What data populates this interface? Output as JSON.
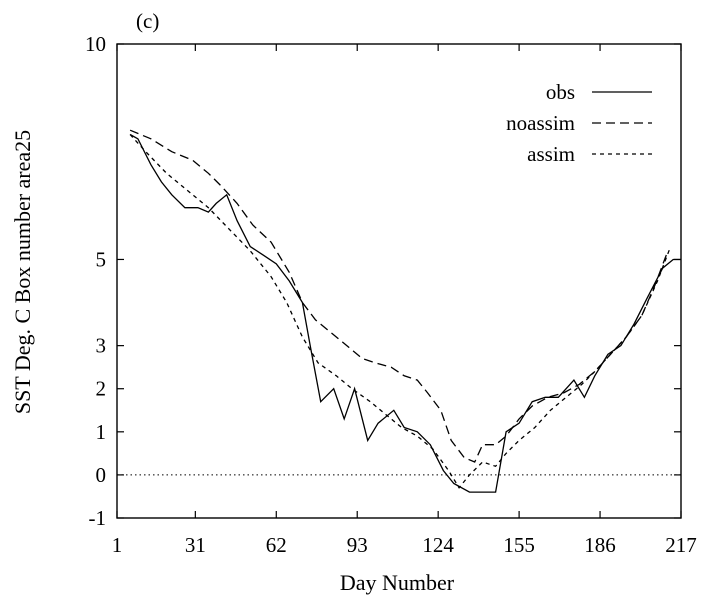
{
  "chart_data": {
    "type": "line",
    "panel_label": "(c)",
    "xlabel": "Day Number",
    "ylabel": "SST Deg. C Box number area25",
    "xlim": [
      1,
      217
    ],
    "ylim": [
      -1,
      10
    ],
    "xticks": [
      1,
      31,
      62,
      93,
      124,
      155,
      186,
      217
    ],
    "yticks": [
      -1,
      0,
      1,
      2,
      3,
      5,
      10
    ],
    "reference_line": {
      "y": 0,
      "style": "dotted"
    },
    "legend_position": "top-right",
    "grid": false,
    "series": [
      {
        "name": "obs",
        "style": "solid",
        "x": [
          6,
          9,
          14,
          18,
          22,
          27,
          32,
          36,
          39,
          43,
          47,
          52,
          57,
          62,
          67,
          72,
          75,
          79,
          84,
          88,
          92,
          97,
          101,
          107,
          111,
          116,
          121,
          126,
          130,
          136,
          141,
          146,
          150,
          155,
          160,
          165,
          170,
          176,
          180,
          184,
          189,
          194,
          199,
          204,
          210,
          214,
          217
        ],
        "y": [
          7.9,
          7.8,
          7.2,
          6.8,
          6.5,
          6.2,
          6.2,
          6.1,
          6.3,
          6.5,
          5.9,
          5.3,
          5.1,
          4.9,
          4.5,
          4.0,
          3.0,
          1.7,
          2.0,
          1.3,
          2.0,
          0.8,
          1.2,
          1.5,
          1.1,
          1.0,
          0.7,
          0.1,
          -0.2,
          -0.4,
          -0.4,
          -0.4,
          1.0,
          1.2,
          1.7,
          1.8,
          1.8,
          2.2,
          1.8,
          2.3,
          2.8,
          3.0,
          3.5,
          4.1,
          4.8,
          5.0,
          5.0
        ]
      },
      {
        "name": "noassim",
        "style": "dashed",
        "x": [
          6,
          14,
          22,
          30,
          36,
          41,
          47,
          53,
          60,
          67,
          72,
          77,
          83,
          89,
          95,
          100,
          106,
          111,
          116,
          120,
          125,
          129,
          134,
          138,
          141,
          146,
          150,
          155,
          160,
          166,
          172,
          178,
          184,
          190,
          196,
          202,
          207,
          212
        ],
        "y": [
          8.0,
          7.8,
          7.5,
          7.3,
          7.0,
          6.7,
          6.3,
          5.8,
          5.4,
          4.7,
          4.0,
          3.6,
          3.3,
          3.0,
          2.7,
          2.6,
          2.5,
          2.3,
          2.2,
          1.9,
          1.5,
          0.8,
          0.4,
          0.3,
          0.7,
          0.7,
          0.9,
          1.3,
          1.6,
          1.8,
          1.9,
          2.1,
          2.4,
          2.8,
          3.2,
          3.7,
          4.4,
          5.2
        ]
      },
      {
        "name": "assim",
        "style": "short-dashed",
        "x": [
          6,
          12,
          20,
          28,
          36,
          44,
          52,
          60,
          66,
          72,
          78,
          85,
          91,
          98,
          104,
          110,
          116,
          122,
          128,
          132,
          136,
          141,
          146,
          150,
          155,
          161,
          167,
          173,
          179,
          184,
          190,
          196,
          202,
          208,
          213
        ],
        "y": [
          7.9,
          7.5,
          7.0,
          6.6,
          6.2,
          5.7,
          5.2,
          4.6,
          4.0,
          3.2,
          2.6,
          2.3,
          2.0,
          1.7,
          1.4,
          1.1,
          0.9,
          0.6,
          0.1,
          -0.3,
          0.0,
          0.3,
          0.2,
          0.5,
          0.8,
          1.1,
          1.5,
          1.8,
          2.1,
          2.4,
          2.8,
          3.2,
          3.7,
          4.5,
          5.3
        ]
      }
    ]
  }
}
